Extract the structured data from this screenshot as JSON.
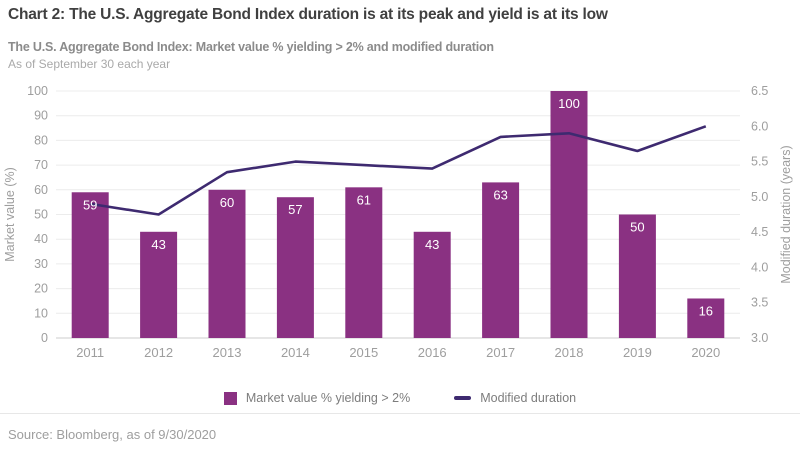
{
  "header": {
    "title": "Chart 2: The U.S. Aggregate Bond Index duration is at its peak and yield is at its low",
    "subtitle": "The U.S. Aggregate Bond Index: Market value % yielding > 2% and modified duration",
    "dateline": "As of September 30 each year"
  },
  "chart_data": {
    "type": "bar",
    "subtype": "bar-with-line-overlay",
    "categories": [
      "2011",
      "2012",
      "2013",
      "2014",
      "2015",
      "2016",
      "2017",
      "2018",
      "2019",
      "2020"
    ],
    "series": [
      {
        "name": "Market value % yielding > 2%",
        "type": "bar",
        "axis": "left",
        "color": "#8a3182",
        "values": [
          59,
          43,
          60,
          57,
          61,
          43,
          63,
          100,
          50,
          16
        ],
        "data_labels": true,
        "data_label_color": "#ffffff"
      },
      {
        "name": "Modified duration",
        "type": "line",
        "axis": "right",
        "color": "#3e2a70",
        "values": [
          4.9,
          4.75,
          5.35,
          5.5,
          5.45,
          5.4,
          5.85,
          5.9,
          5.65,
          6.0
        ]
      }
    ],
    "left_axis": {
      "label": "Market value (%)",
      "min": 0,
      "max": 100,
      "step": 10,
      "ticks": [
        0,
        10,
        20,
        30,
        40,
        50,
        60,
        70,
        80,
        90,
        100
      ]
    },
    "right_axis": {
      "label": "Modified duration (years)",
      "min": 3.0,
      "max": 6.5,
      "step": 0.5,
      "ticks": [
        3.0,
        3.5,
        4.0,
        4.5,
        5.0,
        5.5,
        6.0,
        6.5
      ]
    },
    "grid": true,
    "gridline_color": "#ececec",
    "baseline_color": "#cccccc",
    "tick_label_color": "#9e9e9e",
    "legend_position": "bottom"
  },
  "legend": {
    "items": [
      {
        "label": "Market value % yielding > 2%",
        "swatch": "square",
        "color": "#8a3182"
      },
      {
        "label": "Modified duration",
        "swatch": "line",
        "color": "#3e2a70"
      }
    ]
  },
  "footer": {
    "source": "Source: Bloomberg, as of 9/30/2020"
  }
}
